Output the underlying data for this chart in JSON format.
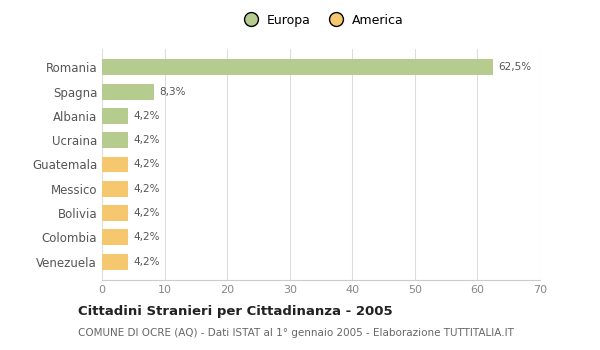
{
  "categories": [
    "Romania",
    "Spagna",
    "Albania",
    "Ucraina",
    "Guatemala",
    "Messico",
    "Bolivia",
    "Colombia",
    "Venezuela"
  ],
  "values": [
    62.5,
    8.3,
    4.2,
    4.2,
    4.2,
    4.2,
    4.2,
    4.2,
    4.2
  ],
  "labels": [
    "62,5%",
    "8,3%",
    "4,2%",
    "4,2%",
    "4,2%",
    "4,2%",
    "4,2%",
    "4,2%",
    "4,2%"
  ],
  "colors": [
    "#b5cc8e",
    "#b5cc8e",
    "#b5cc8e",
    "#b5cc8e",
    "#f5c870",
    "#f5c870",
    "#f5c870",
    "#f5c870",
    "#f5c870"
  ],
  "legend_labels": [
    "Europa",
    "America"
  ],
  "legend_colors": [
    "#b5cc8e",
    "#f5c870"
  ],
  "xlim": [
    0,
    70
  ],
  "xticks": [
    0,
    10,
    20,
    30,
    40,
    50,
    60,
    70
  ],
  "title": "Cittadini Stranieri per Cittadinanza - 2005",
  "subtitle": "COMUNE DI OCRE (AQ) - Dati ISTAT al 1° gennaio 2005 - Elaborazione TUTTITALIA.IT",
  "bg_color": "#ffffff",
  "grid_color": "#dddddd",
  "bar_height": 0.65
}
